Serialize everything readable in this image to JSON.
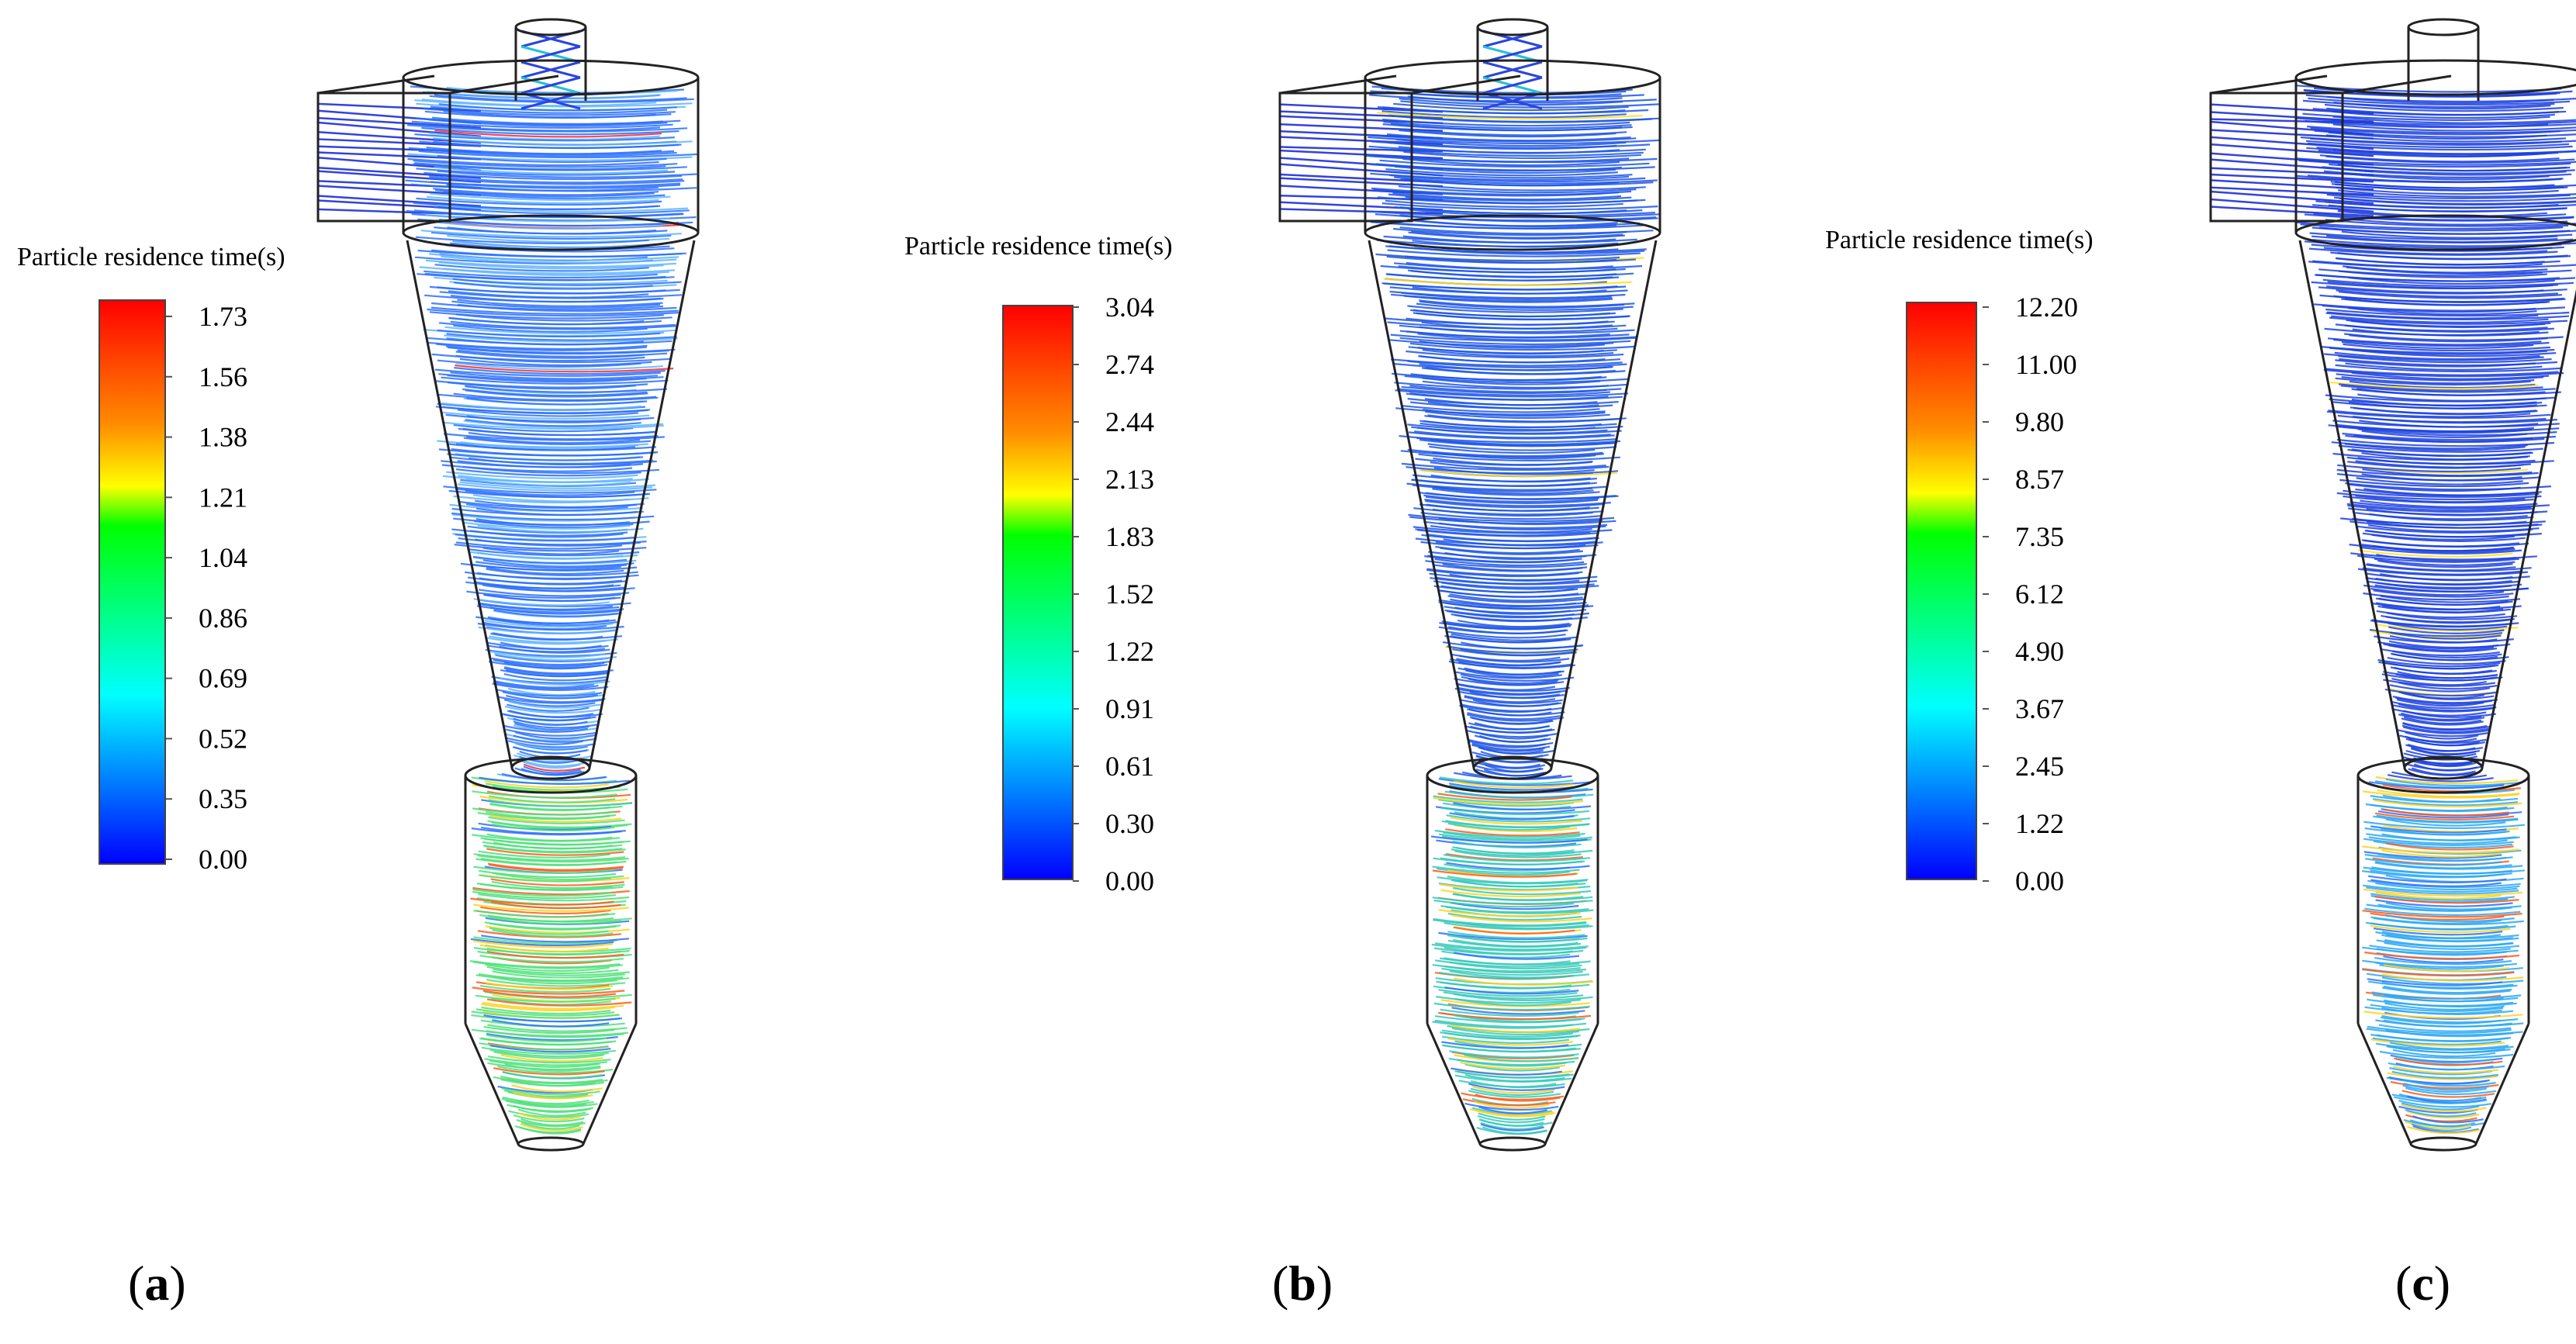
{
  "panels": [
    {
      "id": "a",
      "label_open": "(",
      "label_letter": "a",
      "label_close": ")",
      "legend": {
        "title": "Particle residence time(s)",
        "ticks": [
          "1.73",
          "1.56",
          "1.38",
          "1.21",
          "1.04",
          "0.86",
          "0.69",
          "0.52",
          "0.35",
          "0.00"
        ]
      },
      "upper_dominant": "#2a6fff",
      "lower_dominant": "#4fe07a"
    },
    {
      "id": "b",
      "label_open": "(",
      "label_letter": "b",
      "label_close": ")",
      "legend": {
        "title": "Particle residence time(s)",
        "ticks": [
          "3.04",
          "2.74",
          "2.44",
          "2.13",
          "1.83",
          "1.52",
          "1.22",
          "0.91",
          "0.61",
          "0.30",
          "0.00"
        ]
      },
      "upper_dominant": "#1f56e8",
      "lower_dominant": "#35c9b8"
    },
    {
      "id": "c",
      "label_open": "(",
      "label_letter": "c",
      "label_close": ")",
      "legend": {
        "title": "Particle residence time(s)",
        "ticks": [
          "12.20",
          "11.00",
          "9.80",
          "8.57",
          "7.35",
          "6.12",
          "4.90",
          "3.67",
          "2.45",
          "1.22",
          "0.00"
        ]
      },
      "upper_dominant": "#1b3fe0",
      "lower_dominant": "#2aa7f5"
    }
  ],
  "colormap": [
    "#ff0000",
    "#ff8000",
    "#ffff00",
    "#00ff00",
    "#00ffff",
    "#0080ff",
    "#0000ff"
  ]
}
